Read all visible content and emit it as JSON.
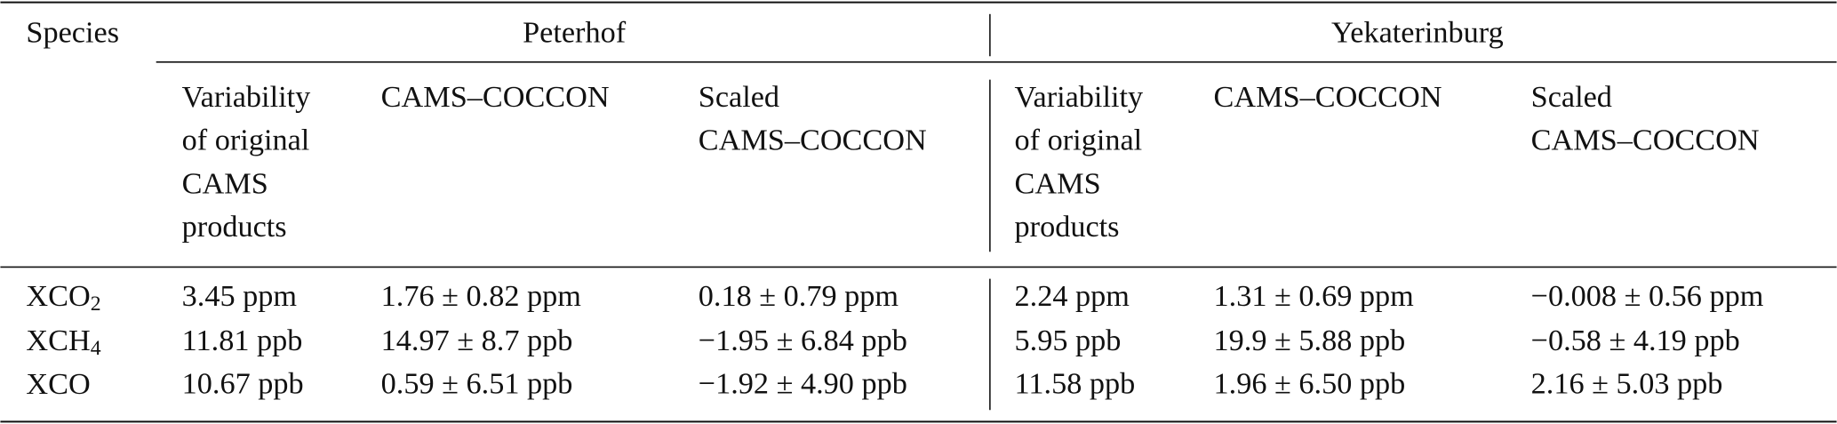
{
  "header": {
    "species": "Species",
    "groups": [
      "Peterhof",
      "Yekaterinburg"
    ],
    "columns": [
      [
        "Variability",
        "of original",
        "CAMS",
        "products"
      ],
      [
        "CAMS–COCCON"
      ],
      [
        "Scaled",
        "CAMS–COCCON"
      ],
      [
        "Variability",
        "of original",
        "CAMS",
        "products"
      ],
      [
        "CAMS–COCCON"
      ],
      [
        "Scaled",
        "CAMS–COCCON"
      ]
    ]
  },
  "rows": [
    {
      "species": {
        "base": "XCO",
        "sub": "2"
      },
      "cells": [
        "3.45 ppm",
        "1.76 ± 0.82 ppm",
        "0.18 ± 0.79 ppm",
        "2.24 ppm",
        "1.31 ± 0.69 ppm",
        "−0.008 ± 0.56 ppm"
      ]
    },
    {
      "species": {
        "base": "XCH",
        "sub": "4"
      },
      "cells": [
        "11.81 ppb",
        "14.97 ± 8.7 ppb",
        "−1.95 ± 6.84 ppb",
        "5.95 ppb",
        "19.9 ± 5.88 ppb",
        "−0.58 ± 4.19 ppb"
      ]
    },
    {
      "species": {
        "base": "XCO"
      },
      "cells": [
        "10.67 ppb",
        "0.59 ± 6.51 ppb",
        "−1.92 ± 4.90 ppb",
        "11.58 ppb",
        "1.96 ± 6.50 ppb",
        "2.16 ± 5.03 ppb"
      ]
    }
  ]
}
